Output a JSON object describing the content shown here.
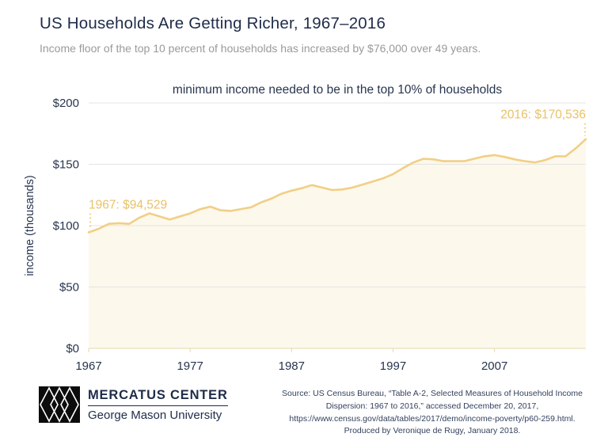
{
  "header": {
    "title": "US Households Are Getting Richer, 1967–2016",
    "subtitle": "Income floor of the top 10 percent of households has increased by $76,000 over 49 years."
  },
  "chart_data": {
    "type": "area",
    "title": "minimum income needed to be in the top 10% of households",
    "ylabel": "income (thousands)",
    "ylim": [
      0,
      200
    ],
    "x": [
      1967,
      1968,
      1969,
      1970,
      1971,
      1972,
      1973,
      1974,
      1975,
      1976,
      1977,
      1978,
      1979,
      1980,
      1981,
      1982,
      1983,
      1984,
      1985,
      1986,
      1987,
      1988,
      1989,
      1990,
      1991,
      1992,
      1993,
      1994,
      1995,
      1996,
      1997,
      1998,
      1999,
      2000,
      2001,
      2002,
      2003,
      2004,
      2005,
      2006,
      2007,
      2008,
      2009,
      2010,
      2011,
      2012,
      2013,
      2014,
      2015,
      2016
    ],
    "values": [
      94.529,
      97.5,
      101.5,
      102,
      101.5,
      106.5,
      110,
      107.5,
      105,
      107.5,
      110,
      113.5,
      115.5,
      112.5,
      112,
      113.5,
      115,
      119,
      122,
      126,
      128.5,
      130.5,
      133,
      131,
      129,
      129.5,
      131,
      133.5,
      136,
      138.5,
      142,
      147,
      151.5,
      154.5,
      154,
      152.5,
      152.5,
      152.5,
      154.5,
      156.5,
      157.5,
      156,
      154,
      152.5,
      151.5,
      153.5,
      156.5,
      156.5,
      163,
      170.536
    ],
    "yticks": [
      {
        "value": 0,
        "label": "$0"
      },
      {
        "value": 50,
        "label": "$50"
      },
      {
        "value": 100,
        "label": "$100"
      },
      {
        "value": 150,
        "label": "$150"
      },
      {
        "value": 200,
        "label": "$200"
      }
    ],
    "xticks": [
      {
        "value": 1967,
        "label": "1967"
      },
      {
        "value": 1977,
        "label": "1977"
      },
      {
        "value": 1987,
        "label": "1987"
      },
      {
        "value": 1997,
        "label": "1997"
      },
      {
        "value": 2007,
        "label": "2007"
      }
    ],
    "annotations": [
      {
        "x": 1967,
        "value": 94.529,
        "label": "1967: $94,529",
        "align": "left"
      },
      {
        "x": 2016,
        "value": 170.536,
        "label": "2016: $170,536",
        "align": "right"
      }
    ],
    "colors": {
      "line": "#f1cf85",
      "fill": "#fdf8ec",
      "grid": "#e4e4e4",
      "baseline": "#e6d7ae",
      "axis_text": "#27354f",
      "annotation": "#e8c268"
    }
  },
  "footer": {
    "brand": "MERCATUS CENTER",
    "brand_sub": "George Mason University",
    "source_lines": [
      "Source: US Census Bureau, “Table A-2, Selected Measures of Household Income",
      "Dispersion: 1967 to 2016,” accessed December 20, 2017,",
      "https://www.census.gov/data/tables/2017/demo/income-poverty/p60-259.html.",
      "Produced by Veronique de Rugy, January 2018."
    ]
  }
}
